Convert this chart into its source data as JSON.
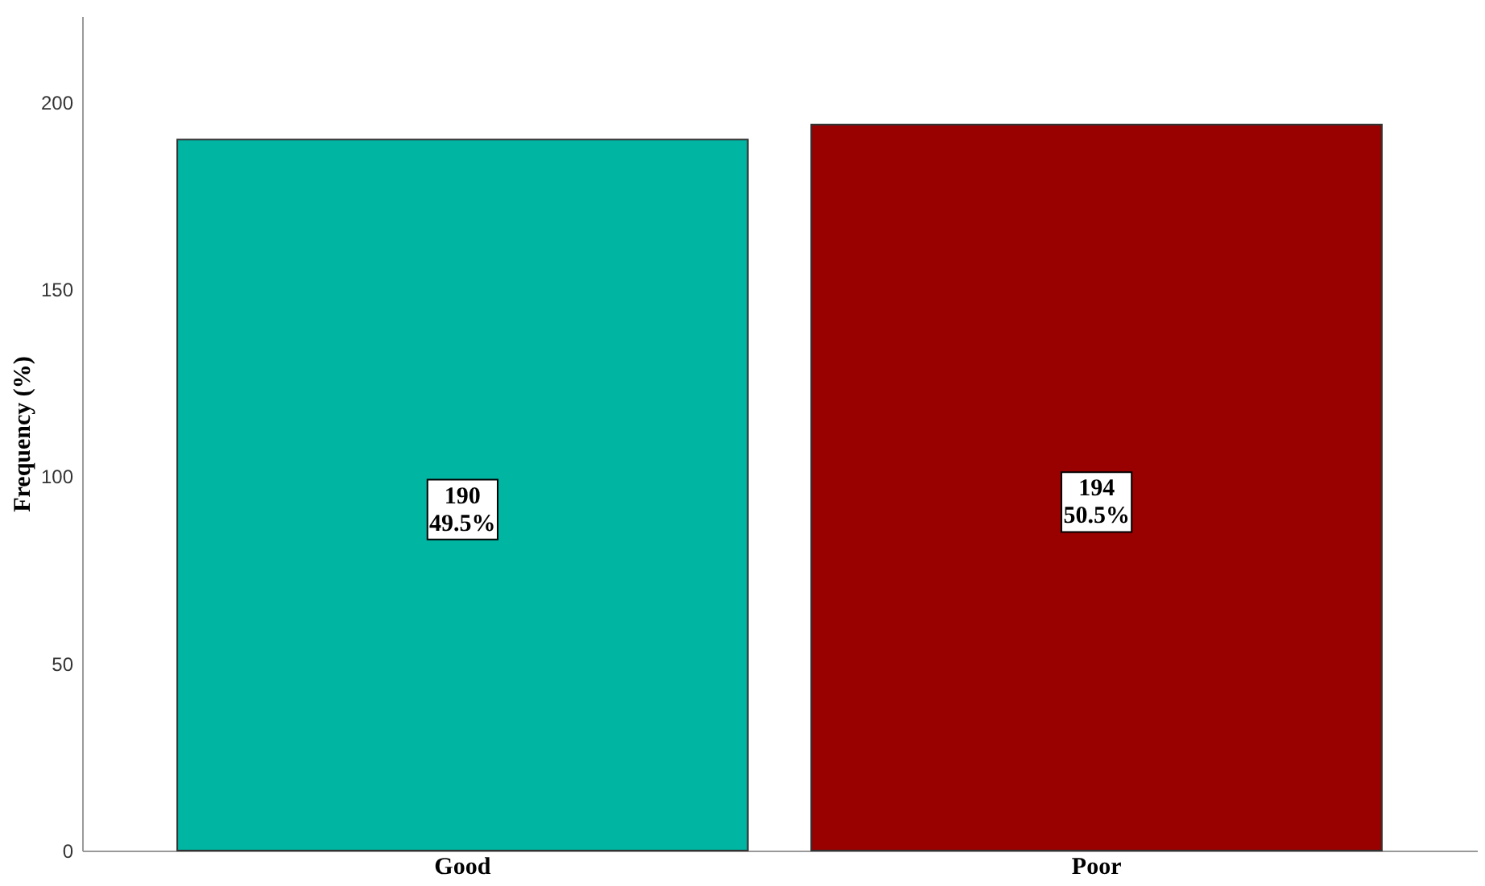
{
  "chart_data": {
    "type": "bar",
    "ylabel": "Frequency (%)",
    "categories": [
      "Good",
      "Poor"
    ],
    "values": [
      190,
      194
    ],
    "colors": [
      "#00b5a2",
      "#990000"
    ],
    "value_labels": [
      "190\n49.5%",
      "194\n50.5%"
    ],
    "ylim": [
      0,
      223
    ],
    "yticks": [
      0,
      50,
      100,
      150,
      200
    ],
    "grid": false
  }
}
